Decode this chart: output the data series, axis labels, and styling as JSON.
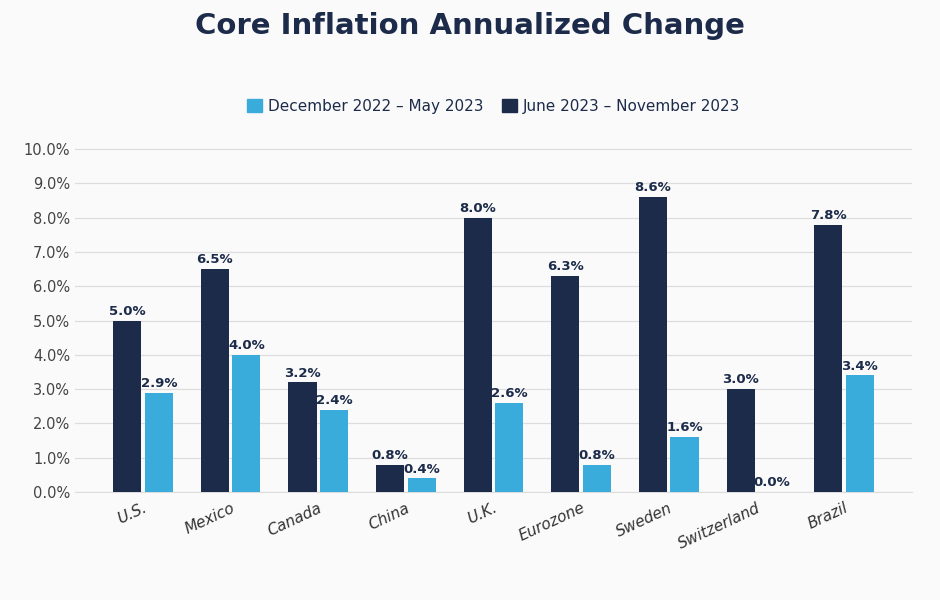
{
  "title": "Core Inflation Annualized Change",
  "categories": [
    "U.S.",
    "Mexico",
    "Canada",
    "China",
    "U.K.",
    "Eurozone",
    "Sweden",
    "Switzerland",
    "Brazil"
  ],
  "series1_label": "December 2022 – May 2023",
  "series2_label": "June 2023 – November 2023",
  "series1_values": [
    2.9,
    4.0,
    2.4,
    0.4,
    2.6,
    0.8,
    1.6,
    0.0,
    3.4
  ],
  "series2_values": [
    5.0,
    6.5,
    3.2,
    0.8,
    8.0,
    6.3,
    8.6,
    3.0,
    7.8
  ],
  "series1_color": "#3AACDC",
  "series2_color": "#1C2B4A",
  "ylim": [
    0,
    10.5
  ],
  "yticks": [
    0.0,
    1.0,
    2.0,
    3.0,
    4.0,
    5.0,
    6.0,
    7.0,
    8.0,
    9.0,
    10.0
  ],
  "ytick_labels": [
    "0.0%",
    "1.0%",
    "2.0%",
    "3.0%",
    "4.0%",
    "5.0%",
    "6.0%",
    "7.0%",
    "8.0%",
    "9.0%",
    "10.0%"
  ],
  "background_color": "#FAFAFA",
  "plot_bg_color": "#FAFAFA",
  "grid_color": "#DDDDDD",
  "title_color": "#1C2B4A",
  "ytick_color": "#444444",
  "xtick_color": "#333333",
  "title_fontsize": 21,
  "label_fontsize": 10.5,
  "bar_value_fontsize": 9.5,
  "legend_fontsize": 11,
  "bar_width": 0.32,
  "bar_gap": 0.04
}
